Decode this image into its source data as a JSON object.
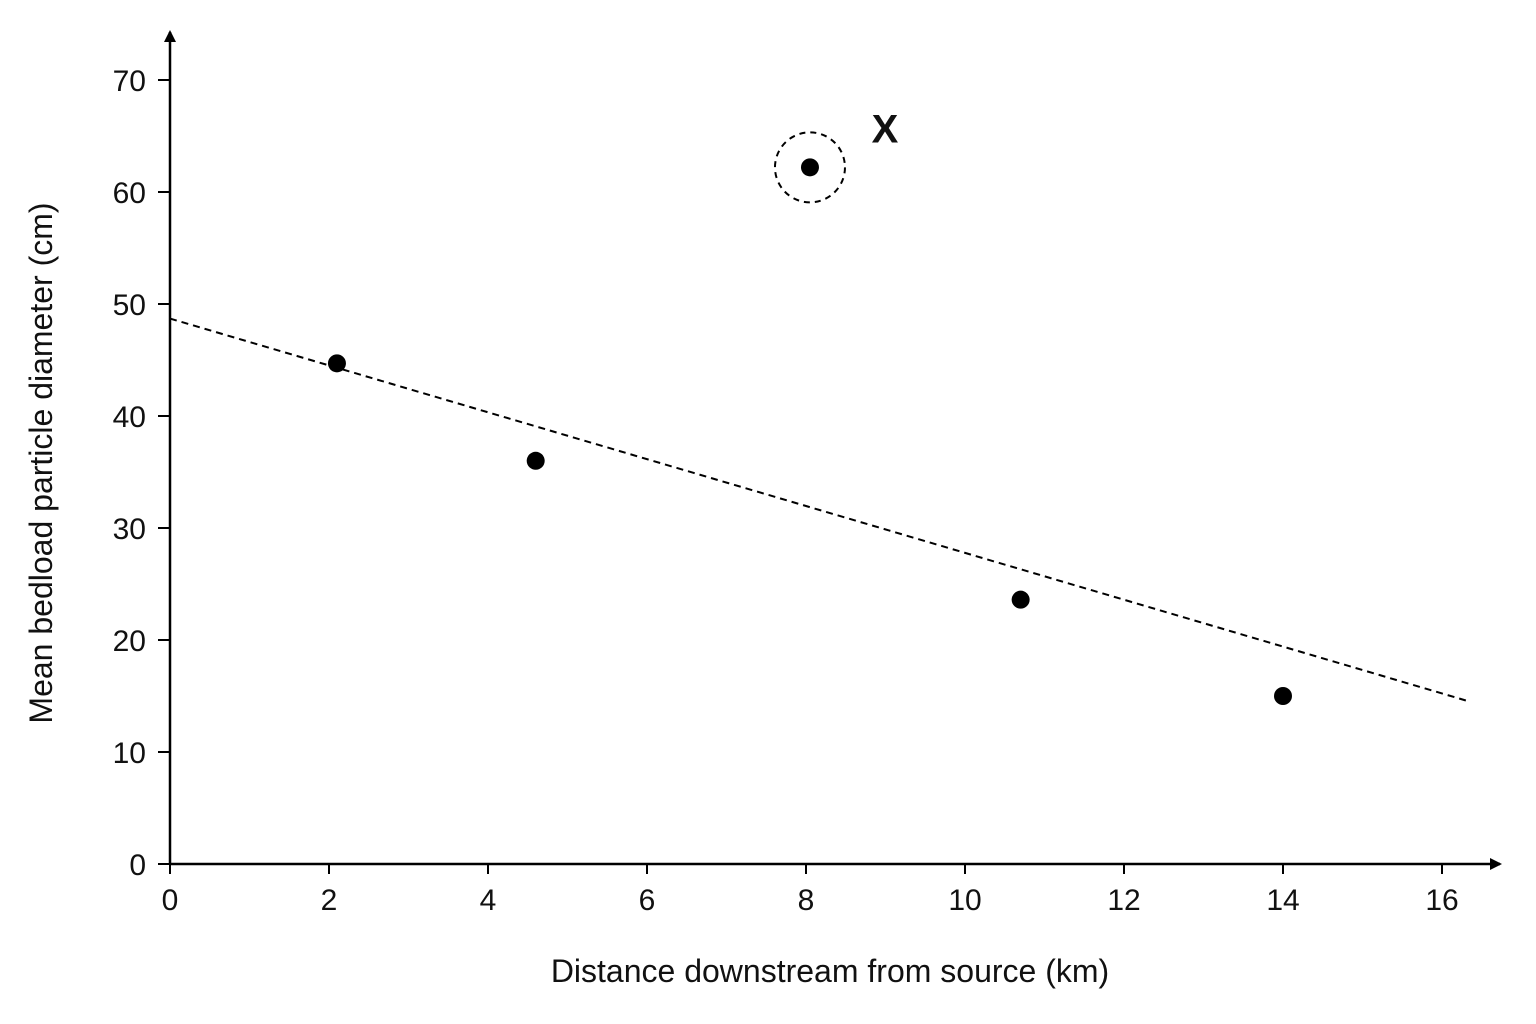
{
  "chart_data": {
    "type": "scatter",
    "title": "",
    "xlabel": "Distance downstream from source (km)",
    "ylabel": "Mean bedload particle diameter (cm)",
    "xlim": [
      0,
      16.4
    ],
    "ylim": [
      0,
      74
    ],
    "xticks": [
      0,
      2,
      4,
      6,
      8,
      10,
      12,
      14,
      16
    ],
    "yticks": [
      0,
      10,
      20,
      30,
      40,
      50,
      60,
      70
    ],
    "grid": false,
    "legend": "none",
    "points": [
      {
        "x": 2.1,
        "y": 44.7
      },
      {
        "x": 4.6,
        "y": 36.0
      },
      {
        "x": 8.05,
        "y": 62.2,
        "annotated": true
      },
      {
        "x": 10.7,
        "y": 23.6
      },
      {
        "x": 14.0,
        "y": 15.0
      }
    ],
    "trendline": {
      "style": "dashed",
      "from": {
        "x": 0,
        "y": 48.7
      },
      "to": {
        "x": 16.3,
        "y": 14.6
      }
    },
    "annotation": {
      "label": "X",
      "target_point_index": 2,
      "marker": "dashed-circle"
    },
    "colors": {
      "points": "#000000",
      "axes": "#000000",
      "trendline": "#000000",
      "text": "#111111"
    }
  }
}
